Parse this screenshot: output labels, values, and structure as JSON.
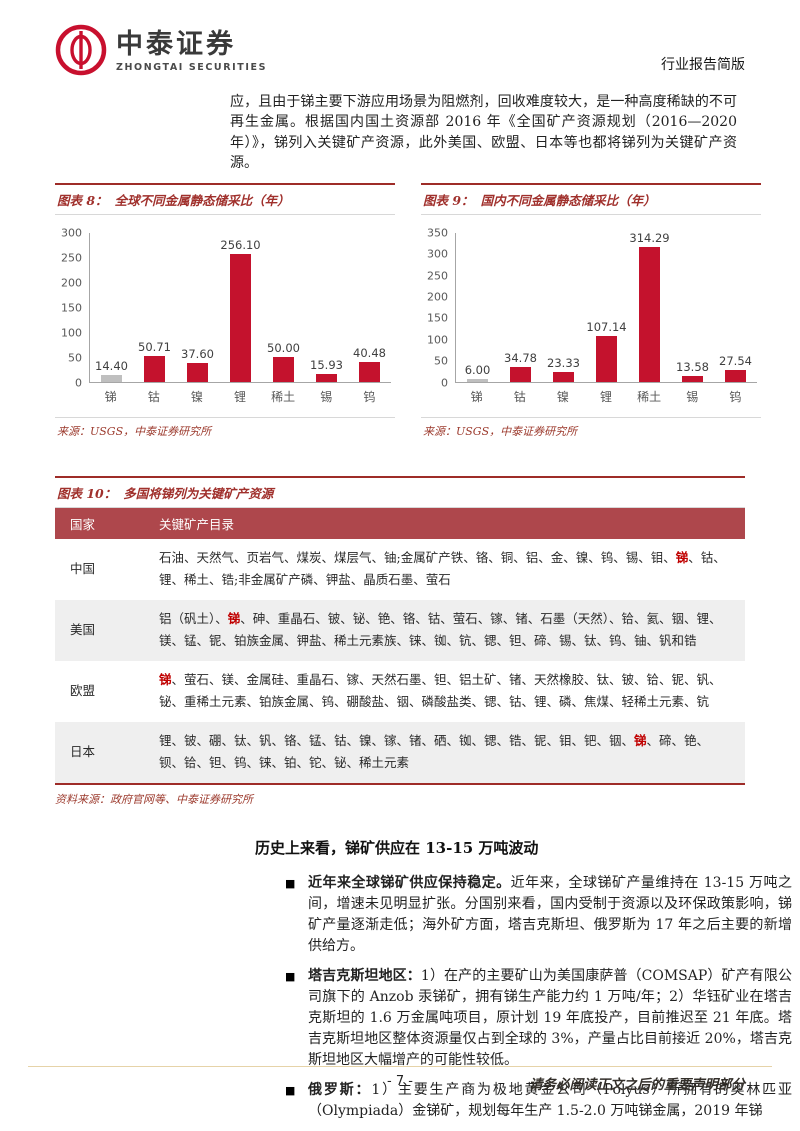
{
  "header": {
    "logo_cn": "中泰证券",
    "logo_en": "ZHONGTAI SECURITIES",
    "report_type": "行业报告简版"
  },
  "intro": "应，且由于锑主要下游应用场景为阻燃剂，回收难度较大，是一种高度稀缺的不可再生金属。根据国内国土资源部 2016 年《全国矿产资源规划（2016—2020 年）》，锑列入关键矿产资源，此外美国、欧盟、日本等也都将锑列为关键矿产资源。",
  "chart_data": [
    {
      "type": "bar",
      "caption_label": "图表 8：",
      "title": "全球不同金属静态储采比（年）",
      "categories": [
        "锑",
        "钴",
        "镍",
        "锂",
        "稀土",
        "锡",
        "钨"
      ],
      "values": [
        14.4,
        50.71,
        37.6,
        256.1,
        50.0,
        15.93,
        40.48
      ],
      "value_labels": [
        "14.40",
        "50.71",
        "37.60",
        "256.10",
        "50.00",
        "15.93",
        "40.48"
      ],
      "highlight_index": 0,
      "xlabel": "",
      "ylabel": "",
      "ylim": [
        0,
        300
      ],
      "ytick_step": 50,
      "grid": false,
      "legend": false,
      "source": "来源：USGS，中泰证券研究所"
    },
    {
      "type": "bar",
      "caption_label": "图表 9：",
      "title": "国内不同金属静态储采比（年）",
      "categories": [
        "锑",
        "钴",
        "镍",
        "锂",
        "稀土",
        "锡",
        "钨"
      ],
      "values": [
        6.0,
        34.78,
        23.33,
        107.14,
        314.29,
        13.58,
        27.54
      ],
      "value_labels": [
        "6.00",
        "34.78",
        "23.33",
        "107.14",
        "314.29",
        "13.58",
        "27.54"
      ],
      "highlight_index": 0,
      "xlabel": "",
      "ylabel": "",
      "ylim": [
        0,
        350
      ],
      "ytick_step": 50,
      "grid": false,
      "legend": false,
      "source": "来源：USGS，中泰证券研究所"
    }
  ],
  "table": {
    "caption_label": "图表 10：",
    "caption_title": "多国将锑列为关键矿产资源",
    "col_country": "国家",
    "col_catalog": "关键矿产目录",
    "rows": [
      {
        "country": "中国",
        "pre": "石油、天然气、页岩气、煤炭、煤层气、铀;金属矿产铁、铬、铜、铝、金、镍、钨、锡、钼、",
        "hl": "锑",
        "post": "、钴、锂、稀土、锆;非金属矿产磷、钾盐、晶质石墨、萤石"
      },
      {
        "country": "美国",
        "pre": "铝（矾土）、",
        "hl": "锑",
        "post": "、砷、重晶石、铍、铋、铯、铬、钴、萤石、镓、锗、石墨（天然）、铪、氦、铟、锂、镁、锰、铌、铂族金属、钾盐、稀土元素族、铼、铷、钪、锶、钽、碲、锡、钛、钨、铀、钒和锆"
      },
      {
        "country": "欧盟",
        "pre": "",
        "hl": "锑",
        "post": "、萤石、镁、金属硅、重晶石、镓、天然石墨、钽、铝土矿、锗、天然橡胶、钛、铍、铪、铌、钒、铋、重稀土元素、铂族金属、钨、硼酸盐、铟、磷酸盐类、锶、钴、锂、磷、焦煤、轻稀土元素、钪"
      },
      {
        "country": "日本",
        "pre": "锂、铍、硼、钛、钒、铬、锰、钴、镍、镓、锗、硒、铷、锶、锆、铌、钼、钯、铟、",
        "hl": "锑",
        "post": "、碲、铯、钡、铪、钽、钨、铼、铂、铊、铋、稀土元素"
      }
    ],
    "source": "资料来源：政府官网等、中泰证券研究所"
  },
  "section": {
    "heading": "历史上来看，锑矿供应在 13-15 万吨波动",
    "bullet_marker": "■",
    "bullets": [
      {
        "lead": "近年来全球锑矿供应保持稳定。",
        "body": "近年来，全球锑矿产量维持在 13-15 万吨之间，增速未见明显扩张。分国别来看，国内受制于资源以及环保政策影响，锑矿产量逐渐走低；海外矿方面，塔吉克斯坦、俄罗斯为 17 年之后主要的新增供给方。"
      },
      {
        "lead": "塔吉克斯坦地区：",
        "body": "1）在产的主要矿山为美国康萨普（COMSAP）矿产有限公司旗下的 Anzob 汞锑矿，拥有锑生产能力约 1 万吨/年；2）华钰矿业在塔吉克斯坦的 1.6 万金属吨项目，原计划 19 年底投产，目前推迟至 21 年底。塔吉克斯坦地区整体资源量仅占到全球的 3%，产量占比目前接近 20%，塔吉克斯坦地区大幅增产的可能性较低。"
      },
      {
        "lead": "俄罗斯：",
        "body": "1）主要生产商为极地黄金公司（Polyus）所拥有的奥林匹亚（Olympiada）金锑矿，规划每年生产 1.5-2.0 万吨锑金属，2019 年锑"
      }
    ]
  },
  "footer": {
    "page_number": "- 7 -",
    "disclaimer": "请务必阅读正文之后的重要声明部分"
  },
  "colors": {
    "accent_red": "#9e2c28",
    "bar_red": "#c4122d",
    "bar_gray": "#bfbfbf",
    "highlight_text": "#c00000",
    "table_header_bg": "#ae474c",
    "row_alt_bg": "#efefef",
    "source_text": "#9c3a2d",
    "footer_line": "#e6d3a8"
  }
}
